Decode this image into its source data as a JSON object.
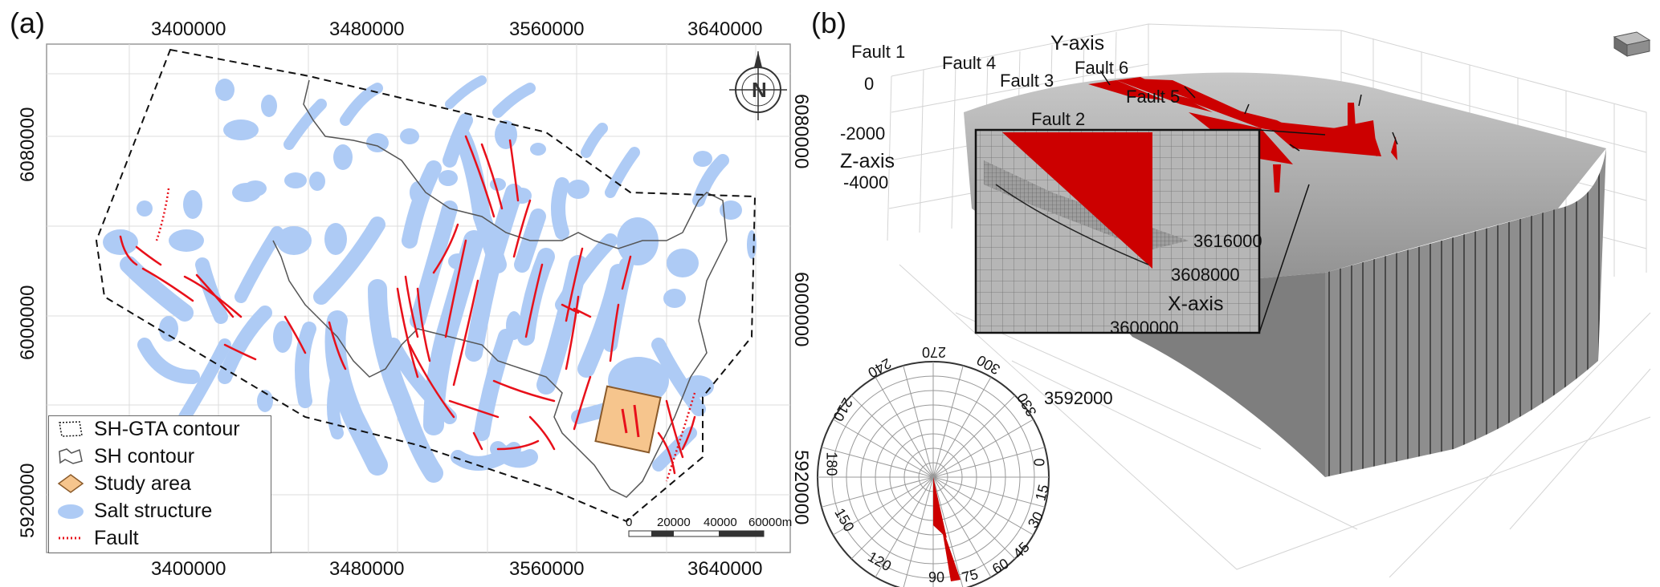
{
  "panel_a": {
    "label": "(a)",
    "x_ticks": [
      "3400000",
      "3480000",
      "3560000",
      "3640000"
    ],
    "y_ticks": [
      "6080000",
      "6000000",
      "5920000"
    ],
    "legend": [
      {
        "label": "SH-GTA contour",
        "icon": "dotted-polygon-icon"
      },
      {
        "label": "SH contour",
        "icon": "outline-polygon-icon"
      },
      {
        "label": "Study area",
        "icon": "orange-diamond-icon"
      },
      {
        "label": "Salt structure",
        "icon": "blue-blob-icon"
      },
      {
        "label": "Fault",
        "icon": "red-dotted-line-icon"
      }
    ],
    "scalebar": [
      "0",
      "20000",
      "40000",
      "60000m"
    ],
    "colors": {
      "salt": "#aecbf5",
      "fault": "#e8101a",
      "study": "#f6c58d",
      "study_edge": "#8a5a2a"
    }
  },
  "panel_b": {
    "label": "(b)",
    "axes": {
      "y": "Y-axis",
      "z": "Z-axis",
      "x": "X-axis"
    },
    "z_ticks": [
      "0",
      "-2000",
      "-4000"
    ],
    "x_ticks": [
      "3616000",
      "3608000",
      "3600000",
      "3592000"
    ],
    "faults": [
      "Fault 1",
      "Fault 4",
      "Fault 3",
      "Fault 6",
      "Fault 5",
      "Fault 2"
    ],
    "rose": {
      "labels": [
        "270",
        "300",
        "330",
        "0",
        "15",
        "30",
        "45",
        "60",
        "75",
        "90",
        "120",
        "150",
        "180",
        "210",
        "240"
      ],
      "dominant_strike_degrees": [
        75,
        90
      ]
    },
    "colors": {
      "fault": "#cc0000",
      "model": "#9a9a9a"
    }
  }
}
